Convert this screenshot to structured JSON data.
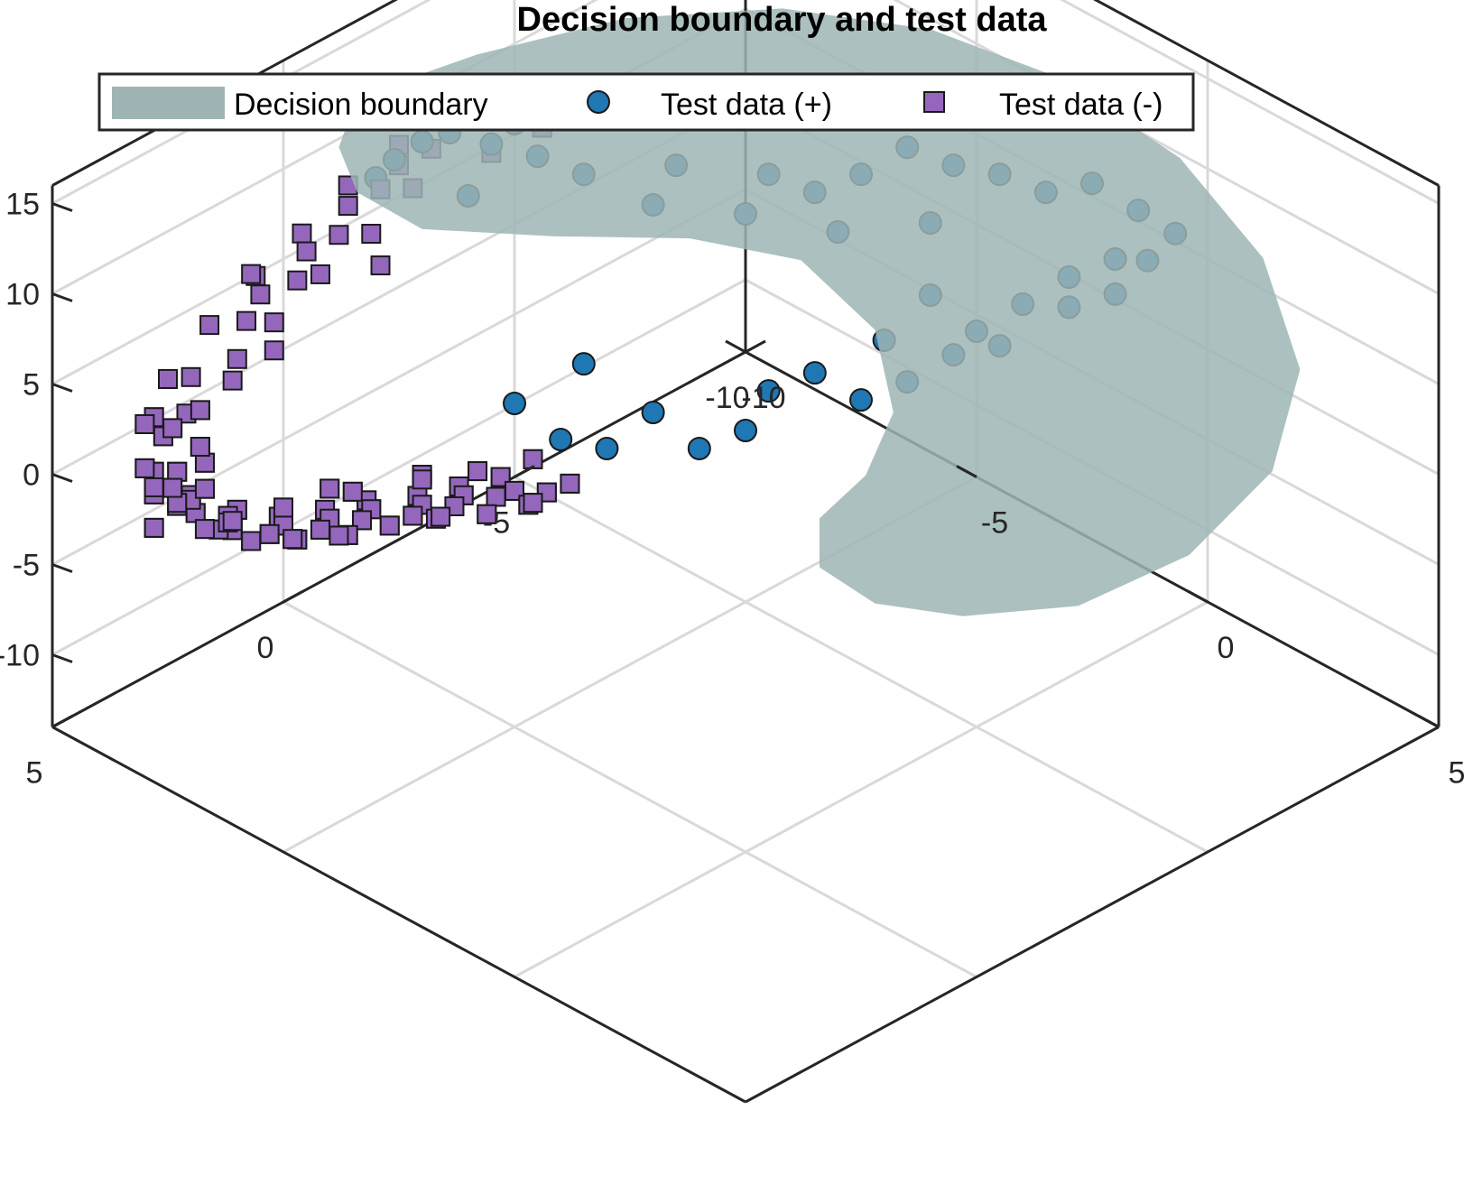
{
  "chart_data": {
    "type": "scatter",
    "projection": "3d",
    "title": "Decision boundary and test data",
    "xlabel": "",
    "ylabel": "",
    "zlabel": "",
    "xlim": [
      -10,
      5
    ],
    "ylim": [
      -10,
      5
    ],
    "zlim": [
      -14,
      16
    ],
    "xticks": [
      5,
      0,
      -5,
      -10
    ],
    "yticks": [
      5,
      0,
      -5,
      -10
    ],
    "zticks": [
      15,
      10,
      5,
      0,
      -5,
      -10
    ],
    "grid": true,
    "box": true,
    "legend": {
      "placement": "top",
      "entries": [
        "Decision boundary",
        "Test data (+)",
        "Test data (-)"
      ]
    },
    "colors": {
      "boundary": "#9fb5b5",
      "positive": "#1f77b4",
      "negative": "#9467bd",
      "marker_edge": "#1a1a1a"
    },
    "surface": {
      "name": "Decision boundary",
      "shape": "crescent",
      "opacity": 0.85
    },
    "series": [
      {
        "name": "Test data (+)",
        "marker": "circle",
        "points": [
          [
            -1.5,
            -8.5,
            11.5
          ],
          [
            -1.8,
            -8.2,
            12.0
          ],
          [
            -1.2,
            -8.8,
            10.5
          ],
          [
            -1.0,
            -9.0,
            9.5
          ],
          [
            -2.5,
            -7.5,
            12.5
          ],
          [
            -2.2,
            -7.7,
            11.5
          ],
          [
            -3.0,
            -7.0,
            13.5
          ],
          [
            -3.5,
            -6.5,
            13.0
          ],
          [
            -4.0,
            -6.0,
            14.5
          ],
          [
            -4.5,
            -5.5,
            13.5
          ],
          [
            -5.0,
            -5.0,
            14.5
          ],
          [
            -5.5,
            -4.5,
            13.0
          ],
          [
            -3.0,
            -7.5,
            10.0
          ],
          [
            -3.5,
            -7.0,
            9.0
          ],
          [
            -4.5,
            -6.0,
            9.5
          ],
          [
            -5.5,
            -5.0,
            9.0
          ],
          [
            -6.0,
            -4.5,
            8.0
          ],
          [
            -6.5,
            -4.0,
            9.0
          ],
          [
            -7.0,
            -3.5,
            10.5
          ],
          [
            -7.5,
            -3.0,
            9.5
          ],
          [
            -8.0,
            -2.5,
            9.0
          ],
          [
            -8.5,
            -2.0,
            8.0
          ],
          [
            -7.0,
            -3.0,
            7.0
          ],
          [
            -9.0,
            -1.5,
            8.5
          ],
          [
            -9.5,
            -1.0,
            7.0
          ],
          [
            -9.8,
            -0.5,
            6.0
          ],
          [
            -9.5,
            -0.8,
            4.5
          ],
          [
            -9.0,
            -1.0,
            5.0
          ],
          [
            -8.5,
            -1.5,
            4.0
          ],
          [
            -9.2,
            -1.2,
            2.5
          ],
          [
            -8.8,
            -1.8,
            1.5
          ],
          [
            -8.0,
            -2.0,
            2.5
          ],
          [
            -7.5,
            -2.5,
            1.0
          ],
          [
            -8.0,
            -2.5,
            -0.5
          ],
          [
            -7.5,
            -3.0,
            -1.0
          ],
          [
            -7.0,
            -3.5,
            -2.5
          ],
          [
            -6.5,
            -4.0,
            -3.5
          ],
          [
            -6.0,
            -4.5,
            -2.0
          ],
          [
            -5.5,
            -5.0,
            -3.0
          ],
          [
            -5.0,
            -5.0,
            -4.5
          ],
          [
            -4.5,
            -5.5,
            -5.5
          ],
          [
            -4.0,
            -6.0,
            -3.5
          ],
          [
            -3.5,
            -6.5,
            -5.5
          ],
          [
            -3.0,
            -7.0,
            -5.0
          ],
          [
            -2.5,
            -7.5,
            -3.0
          ],
          [
            -3.5,
            -7.0,
            -1.5
          ],
          [
            -6.5,
            -3.5,
            0.5
          ],
          [
            -7.0,
            -3.0,
            3.0
          ],
          [
            -6.0,
            -4.0,
            6.5
          ],
          [
            -5.0,
            -5.0,
            7.5
          ],
          [
            -4.0,
            -6.0,
            8.0
          ],
          [
            -2.0,
            -8.0,
            8.5
          ]
        ]
      },
      {
        "name": "Test data (-)",
        "marker": "square",
        "points": [
          [
            3.0,
            -9.0,
            4.0
          ],
          [
            3.2,
            -8.6,
            3.0
          ],
          [
            3.5,
            -8.9,
            2.0
          ],
          [
            3.4,
            -9.2,
            1.0
          ],
          [
            3.6,
            -8.7,
            0.0
          ],
          [
            3.8,
            -9.0,
            -1.0
          ],
          [
            3.5,
            -8.8,
            -2.0
          ],
          [
            3.2,
            -9.1,
            -3.0
          ],
          [
            3.0,
            -8.7,
            -4.0
          ],
          [
            2.5,
            -8.9,
            -5.0
          ],
          [
            2.0,
            -9.1,
            -6.0
          ],
          [
            1.5,
            -8.8,
            -6.5
          ],
          [
            1.0,
            -9.0,
            -7.0
          ],
          [
            0.5,
            -8.7,
            -7.5
          ],
          [
            0.0,
            -9.0,
            -8.0
          ],
          [
            -0.5,
            -8.8,
            -8.5
          ],
          [
            -1.0,
            -9.1,
            -9.0
          ],
          [
            -1.5,
            -8.7,
            -9.5
          ],
          [
            -2.0,
            -9.0,
            -10.0
          ],
          [
            -2.5,
            -8.8,
            -10.5
          ],
          [
            -3.0,
            -9.1,
            -11.0
          ],
          [
            -3.5,
            -8.9,
            -11.5
          ],
          [
            -4.0,
            -9.0,
            -12.0
          ],
          [
            -4.5,
            -8.8,
            -12.5
          ],
          [
            2.5,
            -8.5,
            5.0
          ],
          [
            2.0,
            -8.8,
            6.0
          ],
          [
            1.5,
            -9.0,
            6.5
          ],
          [
            1.0,
            -8.7,
            7.0
          ],
          [
            0.5,
            -9.0,
            7.5
          ],
          [
            0.0,
            -8.8,
            8.0
          ],
          [
            -0.5,
            -9.1,
            8.5
          ],
          [
            -1.0,
            -8.9,
            9.0
          ],
          [
            -1.5,
            -9.0,
            9.5
          ],
          [
            -2.0,
            -8.8,
            10.0
          ],
          [
            -2.5,
            -9.2,
            10.5
          ],
          [
            -3.0,
            -9.0,
            10.0
          ],
          [
            -3.5,
            -8.8,
            9.5
          ],
          [
            -4.0,
            -9.1,
            9.0
          ],
          [
            3.3,
            -8.4,
            0.5
          ],
          [
            3.7,
            -9.3,
            -0.5
          ],
          [
            3.1,
            -8.6,
            -1.5
          ],
          [
            3.4,
            -9.4,
            -2.5
          ],
          [
            2.8,
            -8.4,
            -3.5
          ],
          [
            2.6,
            -9.3,
            -4.5
          ],
          [
            2.2,
            -8.5,
            -5.5
          ],
          [
            1.8,
            -9.4,
            -6.2
          ],
          [
            1.2,
            -8.5,
            -6.8
          ],
          [
            0.8,
            -9.3,
            -7.2
          ],
          [
            0.2,
            -8.4,
            -7.8
          ],
          [
            -0.2,
            -9.3,
            -8.2
          ],
          [
            -0.8,
            -8.5,
            -8.8
          ],
          [
            -1.2,
            -9.4,
            -9.2
          ],
          [
            -1.8,
            -8.5,
            -9.8
          ],
          [
            -2.2,
            -9.3,
            -10.2
          ],
          [
            -2.8,
            -8.4,
            -10.8
          ],
          [
            -3.2,
            -9.4,
            -11.2
          ],
          [
            -3.8,
            -8.5,
            -11.8
          ],
          [
            2.8,
            -8.3,
            4.5
          ],
          [
            2.3,
            -9.3,
            5.5
          ],
          [
            1.8,
            -8.4,
            6.2
          ],
          [
            1.3,
            -9.4,
            6.8
          ],
          [
            0.7,
            -8.5,
            7.2
          ],
          [
            0.3,
            -9.3,
            7.8
          ],
          [
            -0.3,
            -8.4,
            8.2
          ],
          [
            -0.8,
            -9.4,
            8.8
          ],
          [
            -1.3,
            -8.5,
            9.2
          ],
          [
            -1.8,
            -9.3,
            9.8
          ],
          [
            3.6,
            -8.5,
            3.5
          ],
          [
            3.9,
            -9.1,
            2.5
          ],
          [
            3.3,
            -9.5,
            1.5
          ],
          [
            3.9,
            -8.5,
            -0.2
          ],
          [
            3.2,
            -9.6,
            -1.8
          ],
          [
            2.9,
            -8.2,
            -3.0
          ],
          [
            2.4,
            -9.6,
            -4.2
          ],
          [
            1.6,
            -8.2,
            -5.8
          ],
          [
            1.4,
            -9.6,
            -6.4
          ],
          [
            0.6,
            -8.2,
            -7.0
          ],
          [
            -0.6,
            -9.6,
            -8.0
          ],
          [
            -1.6,
            -8.2,
            -9.0
          ],
          [
            -2.6,
            -9.6,
            -10.0
          ],
          [
            -3.6,
            -8.2,
            -11.0
          ],
          [
            -4.2,
            -9.5,
            -12.2
          ],
          [
            -4.6,
            -8.4,
            -11.6
          ],
          [
            -0.2,
            -8.1,
            7.0
          ],
          [
            1.0,
            -9.6,
            6.0
          ],
          [
            2.0,
            -8.2,
            5.2
          ],
          [
            3.0,
            -9.5,
            3.2
          ],
          [
            3.5,
            -8.3,
            1.8
          ],
          [
            3.0,
            -9.0,
            -2.8
          ],
          [
            2.2,
            -9.0,
            -4.8
          ],
          [
            1.0,
            -9.0,
            -6.0
          ],
          [
            -0.5,
            -9.0,
            -7.2
          ],
          [
            -2.0,
            -9.0,
            -8.6
          ],
          [
            -3.2,
            -9.0,
            -9.8
          ],
          [
            -4.4,
            -9.0,
            -10.8
          ],
          [
            3.6,
            -9.2,
            -3.8
          ],
          [
            -3.0,
            -8.5,
            8.8
          ],
          [
            -3.6,
            -9.4,
            8.6
          ],
          [
            -4.2,
            -8.6,
            8.4
          ],
          [
            -4.6,
            -9.3,
            8.0
          ]
        ]
      }
    ]
  }
}
